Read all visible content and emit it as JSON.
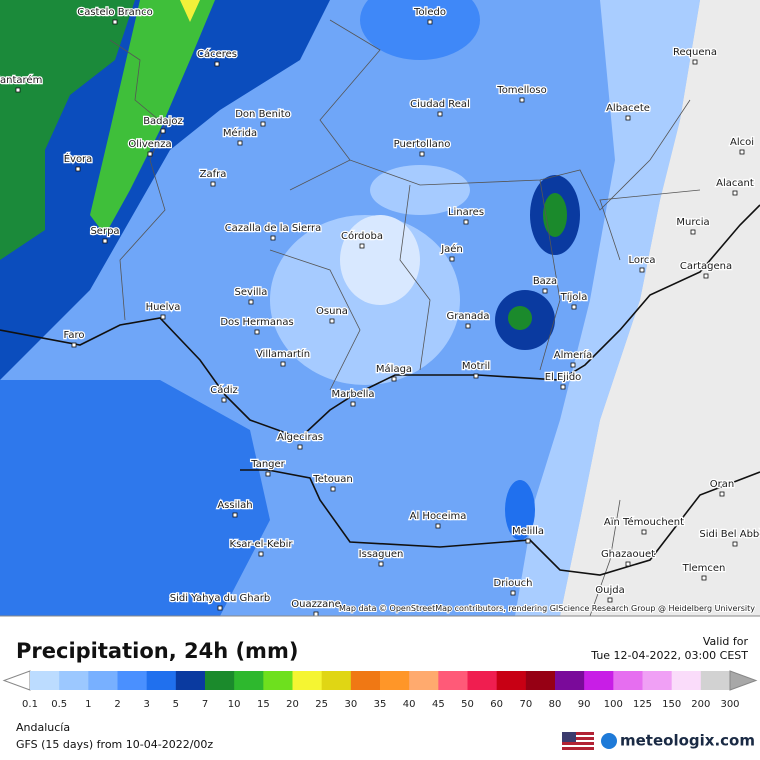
{
  "map": {
    "cities": [
      "Castelo Branco",
      "Toledo",
      "Cáceres",
      "Requena",
      "Santarém",
      "Tomelloso",
      "Ciudad Real",
      "Albacete",
      "Badajoz",
      "Don Benito",
      "Mérida",
      "Olivenza",
      "Puertollano",
      "Évora",
      "Alcoi",
      "Zafra",
      "Alacant",
      "Linares",
      "Murcia",
      "Serpa",
      "Cazalla de la Sierra",
      "Córdoba",
      "Jaén",
      "Lorca",
      "Cartagena",
      "Baza",
      "Sevilla",
      "Tíjola",
      "Huelva",
      "Osuna",
      "Granada",
      "Dos Hermanas",
      "Faro",
      "Almería",
      "Villamartín",
      "Málaga",
      "Motril",
      "El Ejido",
      "Cádiz",
      "Marbella",
      "Algeciras",
      "Tanger",
      "Tetouan",
      "Oran",
      "Assilah",
      "Al Hoceima",
      "Aïn Témouchent",
      "Melilla",
      "Sidi Bel Abbès",
      "Ksar-el-Kebir",
      "Issaguen",
      "Ghazaouet",
      "Tlemcen",
      "Driouch",
      "Oujda",
      "Sidi Yahya du Gharb",
      "Ouazzane"
    ],
    "attribution": "Map data © OpenStreetMap contributors, rendering GIScience Research Group @ Heidelberg University"
  },
  "header": {
    "title": "Precipitation, 24h (mm)",
    "valid_label": "Valid for",
    "valid_time": "Tue 12-04-2022, 03:00 CEST"
  },
  "legend": {
    "values": [
      0.1,
      0.5,
      1,
      2,
      3,
      5,
      7,
      10,
      15,
      20,
      25,
      30,
      35,
      40,
      45,
      50,
      60,
      70,
      80,
      90,
      100,
      125,
      150,
      200,
      300
    ],
    "colors": [
      "#bcdcff",
      "#9cc8ff",
      "#78b0ff",
      "#4a90ff",
      "#2070ee",
      "#0a3aa0",
      "#1b8a2c",
      "#2eb82e",
      "#6ee01e",
      "#f5f532",
      "#e0d614",
      "#f07814",
      "#ff9628",
      "#ffaa6e",
      "#ff5a78",
      "#f01e50",
      "#c80014",
      "#960014",
      "#7a0a9a",
      "#c81ee6",
      "#e66ef0",
      "#f0a0f5",
      "#fadcfa",
      "#d2d2d2"
    ]
  },
  "footer": {
    "region": "Andalucía",
    "model": "GFS (15 days) from 10-04-2022/00z",
    "brand": "meteologix.com"
  }
}
